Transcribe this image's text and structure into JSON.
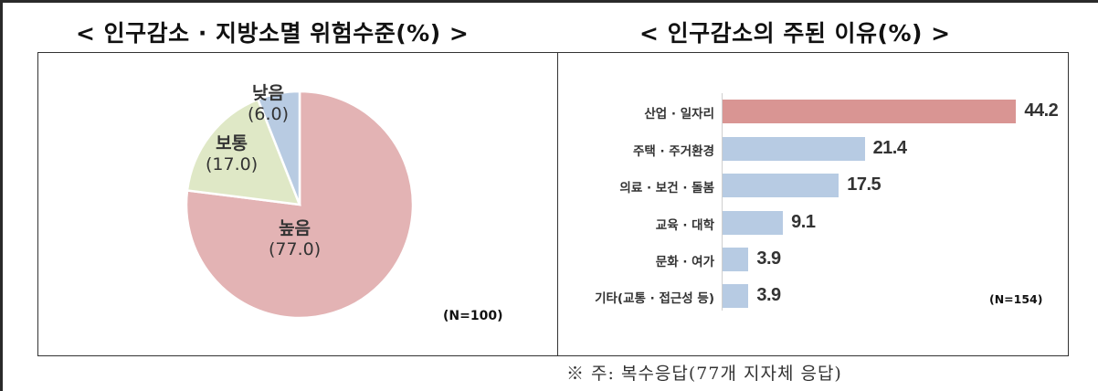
{
  "chart_data": [
    {
      "type": "pie",
      "title": "< 인구감소 · 지방소멸 위험수준(%) >",
      "categories": [
        "높음",
        "보통",
        "낮음"
      ],
      "values": [
        77.0,
        17.0,
        6.0
      ],
      "value_labels": [
        "(77.0)",
        "(17.0)",
        "(6.0)"
      ],
      "colors": [
        "#e3b3b4",
        "#dfe8c6",
        "#b8cbe2"
      ],
      "note": "(N=100)",
      "legend": "none"
    },
    {
      "type": "bar",
      "orientation": "horizontal",
      "title": "< 인구감소의 주된 이유(%) >",
      "categories": [
        "산업 · 일자리",
        "주택 · 주거환경",
        "의료 · 보건 · 돌봄",
        "교육 · 대학",
        "문화 · 여가",
        "기타(교통 · 접근성 등)"
      ],
      "values": [
        44.2,
        21.4,
        17.5,
        9.1,
        3.9,
        3.9
      ],
      "value_labels": [
        "44.2",
        "21.4",
        "17.5",
        "9.1",
        "3.9",
        "3.9"
      ],
      "colors": [
        "#d99593",
        "#b7cbe3",
        "#b7cbe3",
        "#b7cbe3",
        "#b7cbe3",
        "#b7cbe3"
      ],
      "note": "(N=154)",
      "xlabel": "",
      "ylabel": "",
      "grid": false
    }
  ],
  "left_panel": {
    "title": "< 인구감소 · 지방소멸 위험수준(%) >",
    "n_note": "(N=100)",
    "slices": [
      {
        "label": "높음",
        "value": "(77.0)"
      },
      {
        "label": "보통",
        "value": "(17.0)"
      },
      {
        "label": "낮음",
        "value": "(6.0)"
      }
    ]
  },
  "right_panel": {
    "title": "< 인구감소의 주된 이유(%) >",
    "n_note": "(N=154)",
    "bars": [
      {
        "label": "산업 · 일자리",
        "value": "44.2"
      },
      {
        "label": "주택 · 주거환경",
        "value": "21.4"
      },
      {
        "label": "의료 · 보건 · 돌봄",
        "value": "17.5"
      },
      {
        "label": "교육 · 대학",
        "value": "9.1"
      },
      {
        "label": "문화 · 여가",
        "value": "3.9"
      },
      {
        "label": "기타(교통 · 접근성 등)",
        "value": "3.9"
      }
    ]
  },
  "footnote": "※ 주: 복수응답(77개 지자체 응답)"
}
